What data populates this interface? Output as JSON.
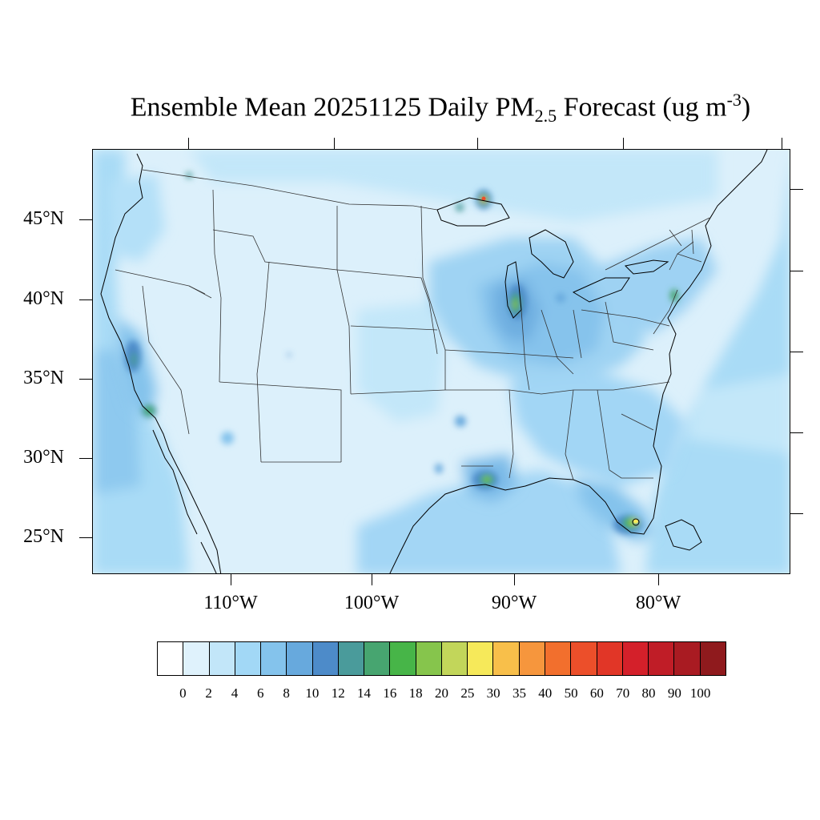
{
  "title": {
    "prefix": "Ensemble Mean 20251125 Daily PM",
    "subscript": "2.5",
    "middle": " Forecast (ug m",
    "superscript": "-3",
    "suffix": ")"
  },
  "lat_labels": [
    "45°N",
    "40°N",
    "35°N",
    "30°N",
    "25°N"
  ],
  "lon_labels": [
    "110°W",
    "100°W",
    "90°W",
    "80°W"
  ],
  "colorbar": {
    "colors": [
      "#ffffff",
      "#dff2fc",
      "#c2e6f9",
      "#a2d8f6",
      "#84c3ec",
      "#67a9dd",
      "#4d8bc9",
      "#4a9b9b",
      "#47a570",
      "#47b548",
      "#86c54c",
      "#c2d65a",
      "#f6e95a",
      "#f8bf4a",
      "#f6963d",
      "#f26f2d",
      "#ec4f2a",
      "#e13627",
      "#d4202a",
      "#c01d27",
      "#a91b22",
      "#8f1a1d"
    ],
    "labels": [
      "0",
      "2",
      "4",
      "6",
      "8",
      "10",
      "12",
      "14",
      "16",
      "18",
      "20",
      "25",
      "30",
      "35",
      "40",
      "50",
      "60",
      "70",
      "80",
      "90",
      "100"
    ]
  },
  "hotspots": [
    {
      "name": "northern-michigan-hotspot",
      "level": "35"
    },
    {
      "name": "chicago-hotspot",
      "level": "20"
    },
    {
      "name": "louisiana-hotspot",
      "level": "20"
    },
    {
      "name": "south-florida-hotspot",
      "level": "25"
    },
    {
      "name": "san-joaquin-hotspot",
      "level": "16"
    },
    {
      "name": "san-diego-hotspot",
      "level": "18"
    }
  ]
}
